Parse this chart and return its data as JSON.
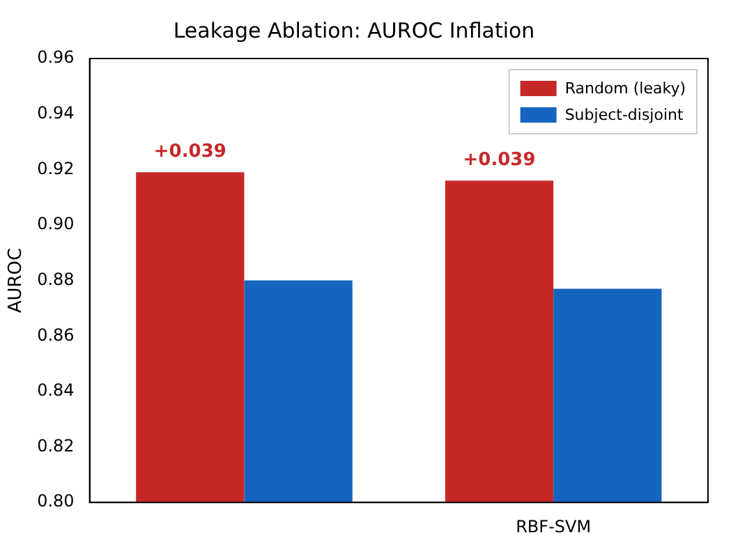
{
  "chart_data": {
    "type": "bar",
    "title": "Leakage Ablation: AUROC Inflation",
    "ylabel": "AUROC",
    "categories": [
      null,
      "RBF-SVM"
    ],
    "series": [
      {
        "name": "Random (leaky)",
        "color": "#c62828",
        "values": [
          0.919,
          0.916
        ]
      },
      {
        "name": "Subject-disjoint",
        "color": "#1565c0",
        "values": [
          0.88,
          0.877
        ]
      }
    ],
    "annotations": [
      "+0.039",
      "+0.039"
    ],
    "ylim": [
      0.8,
      0.96
    ],
    "yticks": [
      {
        "value": 0.8,
        "label": "0.80"
      },
      {
        "value": 0.82,
        "label": "0.82"
      },
      {
        "value": 0.84,
        "label": "0.84"
      },
      {
        "value": 0.86,
        "label": "0.86"
      },
      {
        "value": 0.88,
        "label": "0.88"
      },
      {
        "value": 0.9,
        "label": "0.90"
      },
      {
        "value": 0.92,
        "label": "0.92"
      },
      {
        "value": 0.94,
        "label": "0.94"
      },
      {
        "value": 0.96,
        "label": "0.96"
      }
    ],
    "grid": false,
    "legend": "top right"
  }
}
